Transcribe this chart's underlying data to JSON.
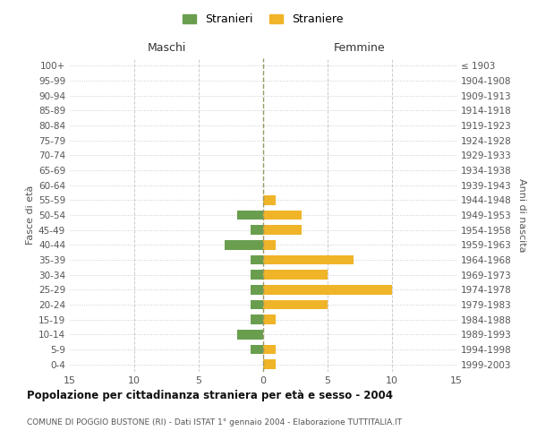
{
  "age_groups_bottom_to_top": [
    "0-4",
    "5-9",
    "10-14",
    "15-19",
    "20-24",
    "25-29",
    "30-34",
    "35-39",
    "40-44",
    "45-49",
    "50-54",
    "55-59",
    "60-64",
    "65-69",
    "70-74",
    "75-79",
    "80-84",
    "85-89",
    "90-94",
    "95-99",
    "100+"
  ],
  "birth_years_bottom_to_top": [
    "1999-2003",
    "1994-1998",
    "1989-1993",
    "1984-1988",
    "1979-1983",
    "1974-1978",
    "1969-1973",
    "1964-1968",
    "1959-1963",
    "1954-1958",
    "1949-1953",
    "1944-1948",
    "1939-1943",
    "1934-1938",
    "1929-1933",
    "1924-1928",
    "1919-1923",
    "1914-1918",
    "1909-1913",
    "1904-1908",
    "≤ 1903"
  ],
  "maschi_bottom_to_top": [
    0,
    1,
    2,
    1,
    1,
    1,
    1,
    1,
    3,
    1,
    2,
    0,
    0,
    0,
    0,
    0,
    0,
    0,
    0,
    0,
    0
  ],
  "femmine_bottom_to_top": [
    1,
    1,
    0,
    1,
    5,
    10,
    5,
    7,
    1,
    3,
    3,
    1,
    0,
    0,
    0,
    0,
    0,
    0,
    0,
    0,
    0
  ],
  "color_maschi": "#6a9e4f",
  "color_femmine": "#f0b429",
  "title": "Popolazione per cittadinanza straniera per età e sesso - 2004",
  "subtitle": "COMUNE DI POGGIO BUSTONE (RI) - Dati ISTAT 1° gennaio 2004 - Elaborazione TUTTITALIA.IT",
  "label_maschi": "Maschi",
  "label_femmine": "Femmine",
  "ylabel_left": "Fasce di età",
  "ylabel_right": "Anni di nascita",
  "legend_maschi": "Stranieri",
  "legend_femmine": "Straniere",
  "xlim": 15,
  "bg_color": "#ffffff",
  "grid_color": "#cccccc",
  "grid_color_x": "#bbbbbb"
}
